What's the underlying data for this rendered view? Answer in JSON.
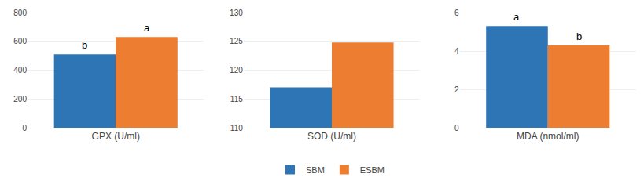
{
  "chart_data": [
    {
      "type": "bar",
      "xlabel": "GPX (U/ml)",
      "categories": [
        null
      ],
      "series": [
        {
          "name": "SBM",
          "color": "#2E75B6",
          "values": [
            510
          ]
        },
        {
          "name": "ESBM",
          "color": "#ED7D31",
          "values": [
            630
          ]
        }
      ],
      "annotations": [
        {
          "series": "SBM",
          "text": "b"
        },
        {
          "series": "ESBM",
          "text": "a"
        }
      ],
      "ylim": [
        0,
        800
      ],
      "yticks": [
        0,
        200,
        400,
        600,
        800
      ],
      "grid": true,
      "legend": "bottom",
      "tick_labels": "y"
    },
    {
      "type": "bar",
      "xlabel": "SOD (U/ml)",
      "categories": [
        null
      ],
      "series": [
        {
          "name": "SBM",
          "color": "#2E75B6",
          "values": [
            117
          ]
        },
        {
          "name": "ESBM",
          "color": "#ED7D31",
          "values": [
            124.8
          ]
        }
      ],
      "ylim": [
        110,
        130
      ],
      "yticks": [
        110,
        115,
        120,
        125,
        130
      ],
      "grid": true,
      "legend": "bottom",
      "tick_labels": "y"
    },
    {
      "type": "bar",
      "xlabel": "MDA (nmol/ml)",
      "categories": [
        null
      ],
      "series": [
        {
          "name": "SBM",
          "color": "#2E75B6",
          "values": [
            5.3
          ]
        },
        {
          "name": "ESBM",
          "color": "#ED7D31",
          "values": [
            4.3
          ]
        }
      ],
      "annotations": [
        {
          "series": "SBM",
          "text": "a"
        },
        {
          "series": "ESBM",
          "text": "b"
        }
      ],
      "ylim": [
        0,
        6
      ],
      "yticks": [
        0,
        2,
        4,
        6
      ],
      "grid": true,
      "legend": "bottom",
      "tick_labels": "y"
    }
  ]
}
